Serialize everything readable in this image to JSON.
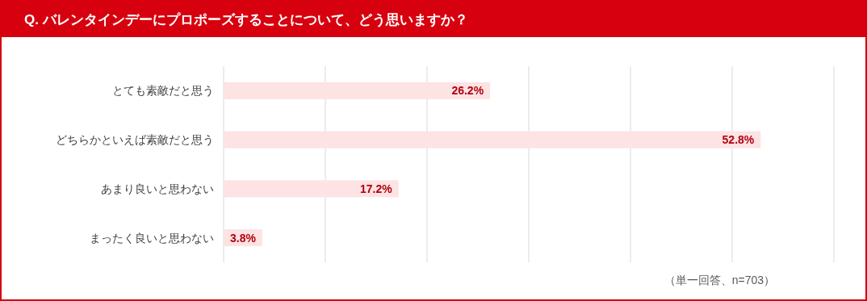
{
  "chart_data": {
    "type": "bar",
    "orientation": "horizontal",
    "title": "Q. バレンタインデーにプロポーズすることについて、どう思いますか？",
    "categories": [
      "とても素敵だと思う",
      "どちらかといえば素敵だと思う",
      "あまり良いと思わない",
      "まったく良いと思わない"
    ],
    "values": [
      26.2,
      52.8,
      17.2,
      3.8
    ],
    "value_labels": [
      "26.2%",
      "52.8%",
      "17.2%",
      "3.8%"
    ],
    "color": "#fde3e3",
    "xlim": [
      0,
      60
    ],
    "xticks": [
      {
        "value": 0,
        "label": null
      },
      {
        "value": 10,
        "label": null
      },
      {
        "value": 20,
        "label": null
      },
      {
        "value": 30,
        "label": null
      },
      {
        "value": 40,
        "label": null
      },
      {
        "value": 50,
        "label": null
      },
      {
        "value": 60,
        "label": null
      }
    ],
    "grid": "x",
    "annotations": [
      "（単一回答、n=703）"
    ]
  }
}
